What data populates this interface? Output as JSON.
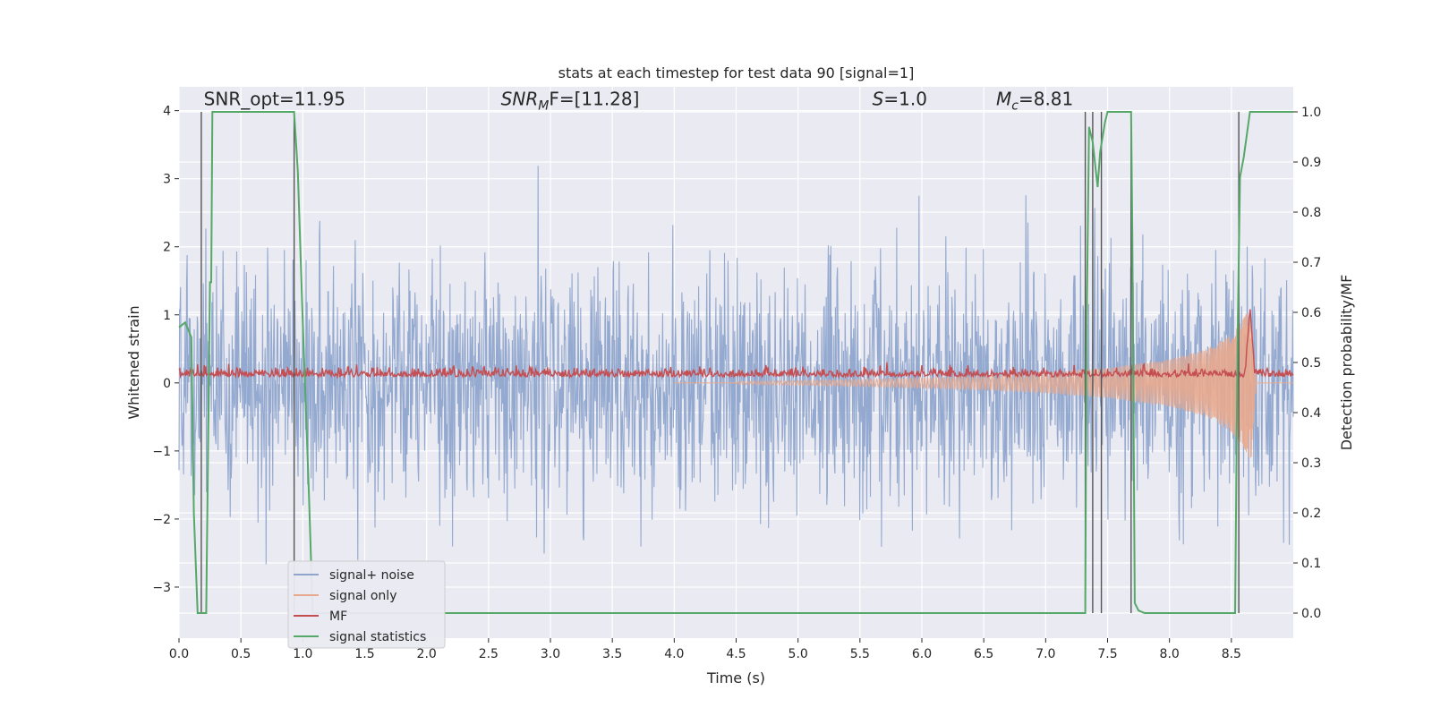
{
  "chart_data": {
    "type": "line",
    "title": "stats at each timestep for test data 90 [signal=1]",
    "xlabel": "Time (s)",
    "ylabel": "Whitened strain",
    "ylabel_right": "Detection probability/MF",
    "xlim": [
      0.0,
      9.0
    ],
    "ylim": [
      -3.75,
      4.35
    ],
    "ylim_right": [
      -0.05,
      1.05
    ],
    "x_ticks": [
      0.0,
      0.5,
      1.0,
      1.5,
      2.0,
      2.5,
      3.0,
      3.5,
      4.0,
      4.5,
      5.0,
      5.5,
      6.0,
      6.5,
      7.0,
      7.5,
      8.0,
      8.5
    ],
    "x_tick_labels": [
      "0.0",
      "0.5",
      "1.0",
      "1.5",
      "2.0",
      "2.5",
      "3.0",
      "3.5",
      "4.0",
      "4.5",
      "5.0",
      "5.5",
      "6.0",
      "6.5",
      "7.0",
      "7.5",
      "8.0",
      "8.5"
    ],
    "y_ticks": [
      -3,
      -2,
      -1,
      0,
      1,
      2,
      3,
      4
    ],
    "y_tick_labels": [
      "−3",
      "−2",
      "−1",
      "0",
      "1",
      "2",
      "3",
      "4"
    ],
    "y_right_ticks": [
      0.0,
      0.1,
      0.2,
      0.3,
      0.4,
      0.5,
      0.6,
      0.7,
      0.8,
      0.9,
      1.0
    ],
    "y_right_tick_labels": [
      "0.0",
      "0.1",
      "0.2",
      "0.3",
      "0.4",
      "0.5",
      "0.6",
      "0.7",
      "0.8",
      "0.9",
      "1.0"
    ],
    "grid": true,
    "legend_position": "lower-left",
    "annotations": [
      {
        "text": "SNR_opt=11.95",
        "x": 0.2,
        "y": 4.08
      },
      {
        "text": "SNR_MF=[11.28]",
        "x": 2.6,
        "y": 4.08
      },
      {
        "text": "S=1.0",
        "x": 5.6,
        "y": 4.08
      },
      {
        "text": "M_c=8.81",
        "x": 6.6,
        "y": 4.08
      }
    ],
    "annotation_display": [
      {
        "pre": "SNR_opt=11.95",
        "italic": "",
        "sub": "",
        "post": ""
      },
      {
        "pre": "",
        "italic": "SNR",
        "sub": "M",
        "post": "F=[11.28]"
      },
      {
        "pre": "",
        "italic": "S",
        "sub": "",
        "post": "=1.0"
      },
      {
        "pre": "",
        "italic": "M",
        "sub": "c",
        "post": "=8.81"
      }
    ],
    "series": [
      {
        "name": "signal+ noise",
        "color": "#8fa5cc",
        "axis": "left",
        "description_range": [
          -3.4,
          3.3
        ]
      },
      {
        "name": "signal only",
        "color": "#e8a88d",
        "axis": "left",
        "envelope": {
          "x": [
            4.5,
            5.5,
            6.5,
            7.0,
            7.5,
            8.0,
            8.3,
            8.5,
            8.6,
            8.66,
            8.7
          ],
          "amplitude": [
            0.02,
            0.05,
            0.1,
            0.15,
            0.22,
            0.35,
            0.5,
            0.72,
            0.95,
            1.15,
            0.0
          ]
        }
      },
      {
        "name": "MF",
        "color": "#c44e52",
        "axis": "left",
        "center": 0.12,
        "spike": {
          "x": 8.65,
          "y": 1.1
        }
      },
      {
        "name": "signal statistics",
        "color": "#55a868",
        "axis": "right",
        "x": [
          0.0,
          0.05,
          0.1,
          0.12,
          0.15,
          0.18,
          0.2,
          0.22,
          0.25,
          0.26,
          0.27,
          0.3,
          0.5,
          0.7,
          0.9,
          0.93,
          0.96,
          1.0,
          1.05,
          1.08,
          1.1,
          2.0,
          3.0,
          4.0,
          5.0,
          6.0,
          7.0,
          7.3,
          7.32,
          7.33,
          7.35,
          7.36,
          7.38,
          7.42,
          7.44,
          7.48,
          7.5,
          7.55,
          7.6,
          7.65,
          7.69,
          7.7,
          7.72,
          7.75,
          7.8,
          7.9,
          8.0,
          8.1,
          8.3,
          8.5,
          8.53,
          8.55,
          8.57,
          8.6,
          8.65,
          8.7,
          8.8,
          9.0
        ],
        "y": [
          0.57,
          0.58,
          0.55,
          0.2,
          0.0,
          0.0,
          0.0,
          0.0,
          0.66,
          0.66,
          1.0,
          1.0,
          1.0,
          1.0,
          1.0,
          1.0,
          0.88,
          0.58,
          0.23,
          0.0,
          0.0,
          0.0,
          0.0,
          0.0,
          0.0,
          0.0,
          0.0,
          0.0,
          0.0,
          0.55,
          0.97,
          0.96,
          0.94,
          0.85,
          0.92,
          0.98,
          1.0,
          1.0,
          1.0,
          1.0,
          1.0,
          0.75,
          0.02,
          0.005,
          0.0,
          0.0,
          0.0,
          0.0,
          0.0,
          0.0,
          0.0,
          0.55,
          0.87,
          0.91,
          1.0,
          1.0,
          1.0,
          1.0
        ]
      }
    ],
    "vertical_lines": [
      0.18,
      0.93,
      7.32,
      7.38,
      7.45,
      7.69,
      8.56
    ]
  }
}
